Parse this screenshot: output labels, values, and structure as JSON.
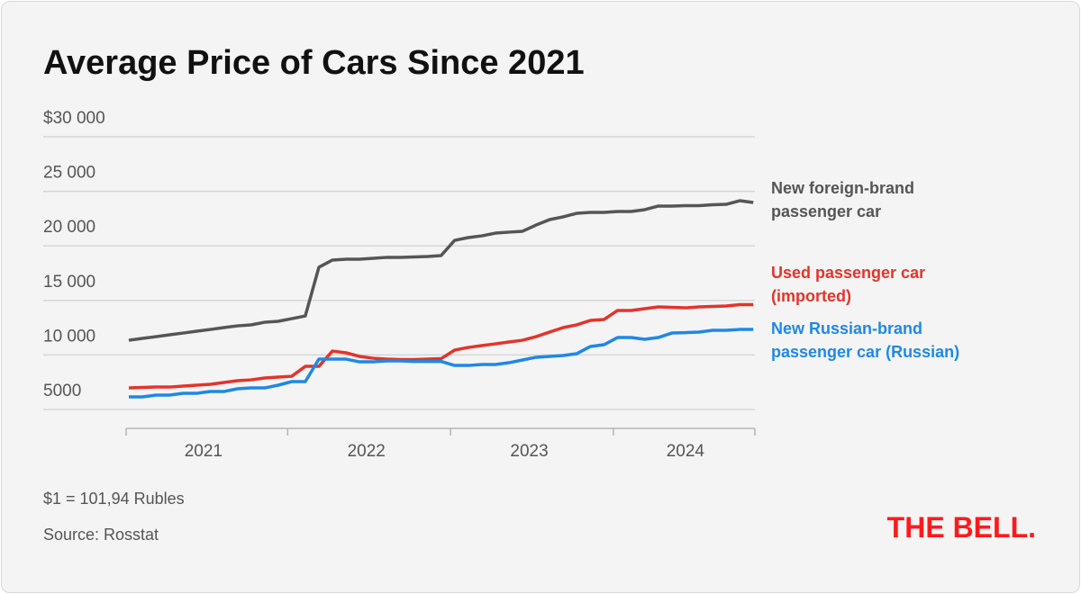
{
  "chart_data": {
    "type": "line",
    "title": "Average Price of Cars Since 2021",
    "categories": [
      "2021",
      null,
      null,
      null,
      null,
      null,
      null,
      null,
      null,
      null,
      null,
      null,
      "2022",
      null,
      null,
      null,
      null,
      null,
      null,
      null,
      null,
      null,
      null,
      null,
      "2023",
      null,
      null,
      null,
      null,
      null,
      null,
      null,
      null,
      null,
      null,
      null,
      "2024",
      null,
      null,
      null,
      null,
      null,
      null,
      null,
      null,
      null,
      null
    ],
    "series": [
      {
        "name": "New foreign-brand passenger car",
        "color": "#555555",
        "values": [
          11350,
          11520,
          11680,
          11850,
          12010,
          12180,
          12340,
          12510,
          12670,
          12760,
          13000,
          13090,
          13330,
          13580,
          18040,
          18700,
          18780,
          18780,
          18860,
          18950,
          18950,
          18990,
          19030,
          19110,
          20510,
          20760,
          20920,
          21170,
          21260,
          21340,
          21910,
          22410,
          22660,
          22990,
          23070,
          23070,
          23150,
          23150,
          23320,
          23650,
          23650,
          23690,
          23690,
          23770,
          23810,
          24140,
          23980
        ]
      },
      {
        "name": "Used passenger car (imported)",
        "color": "#e3342a",
        "values": [
          6980,
          7020,
          7060,
          7060,
          7150,
          7230,
          7310,
          7480,
          7640,
          7720,
          7890,
          7970,
          8050,
          8960,
          8960,
          10360,
          10200,
          9870,
          9700,
          9620,
          9580,
          9580,
          9620,
          9660,
          10450,
          10690,
          10860,
          11020,
          11190,
          11350,
          11680,
          12100,
          12510,
          12760,
          13170,
          13250,
          14080,
          14080,
          14240,
          14410,
          14370,
          14320,
          14410,
          14450,
          14490,
          14610,
          14610
        ]
      },
      {
        "name": "New Russian-brand passenger car (Russian)",
        "color": "#1f88e6",
        "values": [
          6160,
          6160,
          6320,
          6320,
          6490,
          6490,
          6650,
          6650,
          6900,
          6980,
          6980,
          7230,
          7560,
          7560,
          9620,
          9620,
          9620,
          9370,
          9370,
          9460,
          9460,
          9410,
          9410,
          9410,
          9040,
          9040,
          9130,
          9130,
          9290,
          9540,
          9790,
          9870,
          9950,
          10120,
          10780,
          10940,
          11600,
          11600,
          11440,
          11600,
          12010,
          12050,
          12100,
          12260,
          12260,
          12340,
          12340
        ]
      }
    ],
    "ylim": [
      3270,
      30000
    ],
    "yticks": [
      {
        "value": 5000,
        "label": "5000"
      },
      {
        "value": 10000,
        "label": "10 000"
      },
      {
        "value": 15000,
        "label": "15 000"
      },
      {
        "value": 20000,
        "label": "20 000"
      },
      {
        "value": 25000,
        "label": "25 000"
      },
      {
        "value": 30000,
        "label": "$30 000"
      }
    ],
    "grid": true,
    "notes": [
      "$1 = 101,94 Rubles",
      "Source: Rosstat"
    ],
    "logo": "THE BELL."
  }
}
